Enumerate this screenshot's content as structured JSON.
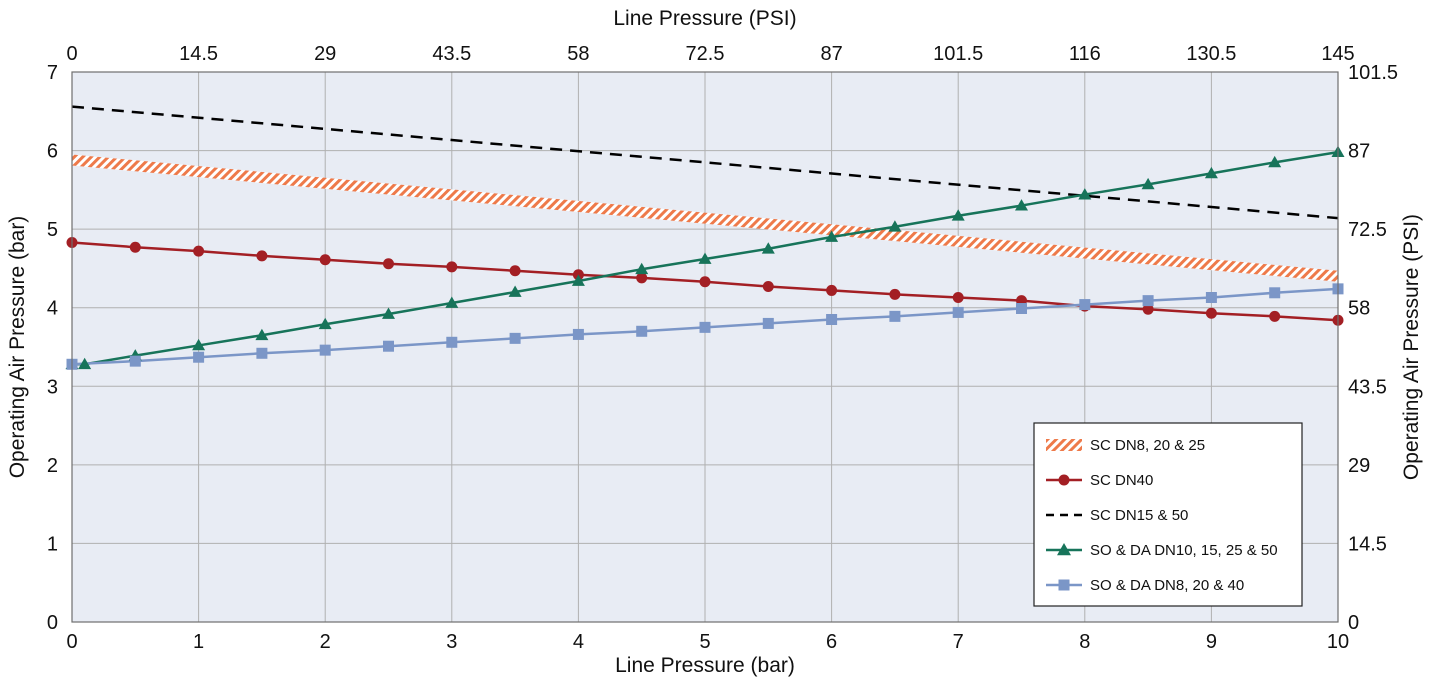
{
  "chart_data": {
    "type": "line",
    "bottom_axis": {
      "label": "Line Pressure (bar)",
      "range": [
        0,
        10
      ],
      "ticks": [
        "0",
        "1",
        "2",
        "3",
        "4",
        "5",
        "6",
        "7",
        "8",
        "9",
        "10"
      ]
    },
    "top_axis": {
      "label": "Line Pressure (PSI)",
      "range": [
        0,
        145
      ],
      "ticks": [
        "0",
        "14.5",
        "29",
        "43.5",
        "58",
        "72.5",
        "87",
        "101.5",
        "116",
        "130.5",
        "145"
      ]
    },
    "left_axis": {
      "label": "Operating Air Pressure (bar)",
      "range": [
        0,
        7
      ],
      "ticks": [
        "0",
        "1",
        "2",
        "3",
        "4",
        "5",
        "6",
        "7"
      ]
    },
    "right_axis": {
      "label": "Operating Air Pressure (PSI)",
      "range": [
        0,
        101.5
      ],
      "ticks": [
        "0",
        "14.5",
        "29",
        "43.5",
        "58",
        "72.5",
        "87",
        "101.5"
      ]
    },
    "grid": true,
    "plot_background": "#e8ecf4",
    "grid_color": "#b0b0b0",
    "legend_position": "bottom-right",
    "series": [
      {
        "name": "SC DN8, 20 & 25",
        "style": "hatched-band",
        "color": "#ee7a4a",
        "x": [
          0,
          10
        ],
        "y": [
          5.88,
          4.4
        ],
        "band_width": 0.14
      },
      {
        "name": "SC DN40",
        "style": "line-circle",
        "color": "#a31f24",
        "x": [
          0,
          0.5,
          1,
          1.5,
          2,
          2.5,
          3,
          3.5,
          4,
          4.5,
          5,
          5.5,
          6,
          6.5,
          7,
          7.5,
          8,
          8.5,
          9,
          9.5,
          10
        ],
        "y": [
          4.83,
          4.77,
          4.72,
          4.66,
          4.61,
          4.56,
          4.52,
          4.47,
          4.42,
          4.38,
          4.33,
          4.27,
          4.22,
          4.17,
          4.13,
          4.09,
          4.02,
          3.98,
          3.93,
          3.89,
          3.84
        ]
      },
      {
        "name": "SC DN15 & 50",
        "style": "dashed",
        "color": "#000000",
        "x": [
          0,
          10
        ],
        "y": [
          6.56,
          5.14
        ]
      },
      {
        "name": "SO & DA DN10, 15, 25 & 50",
        "style": "line-triangle",
        "color": "#17745a",
        "x": [
          0,
          0.1,
          0.5,
          1,
          1.5,
          2,
          2.5,
          3,
          3.5,
          4,
          4.5,
          5,
          5.5,
          6,
          6.5,
          7,
          7.5,
          8,
          8.5,
          9,
          9.5,
          10
        ],
        "y": [
          3.28,
          3.28,
          3.39,
          3.52,
          3.65,
          3.79,
          3.92,
          4.06,
          4.2,
          4.34,
          4.49,
          4.62,
          4.75,
          4.9,
          5.03,
          5.17,
          5.3,
          5.44,
          5.57,
          5.71,
          5.85,
          5.98
        ]
      },
      {
        "name": "SO & DA DN8, 20 & 40",
        "style": "line-square",
        "color": "#7b96c7",
        "x": [
          0,
          0.5,
          1,
          1.5,
          2,
          2.5,
          3,
          3.5,
          4,
          4.5,
          5,
          5.5,
          6,
          6.5,
          7,
          7.5,
          8,
          8.5,
          9,
          9.5,
          10
        ],
        "y": [
          3.28,
          3.32,
          3.37,
          3.42,
          3.46,
          3.51,
          3.56,
          3.61,
          3.66,
          3.7,
          3.75,
          3.8,
          3.85,
          3.89,
          3.94,
          3.99,
          4.04,
          4.09,
          4.13,
          4.19,
          4.24
        ]
      }
    ]
  }
}
